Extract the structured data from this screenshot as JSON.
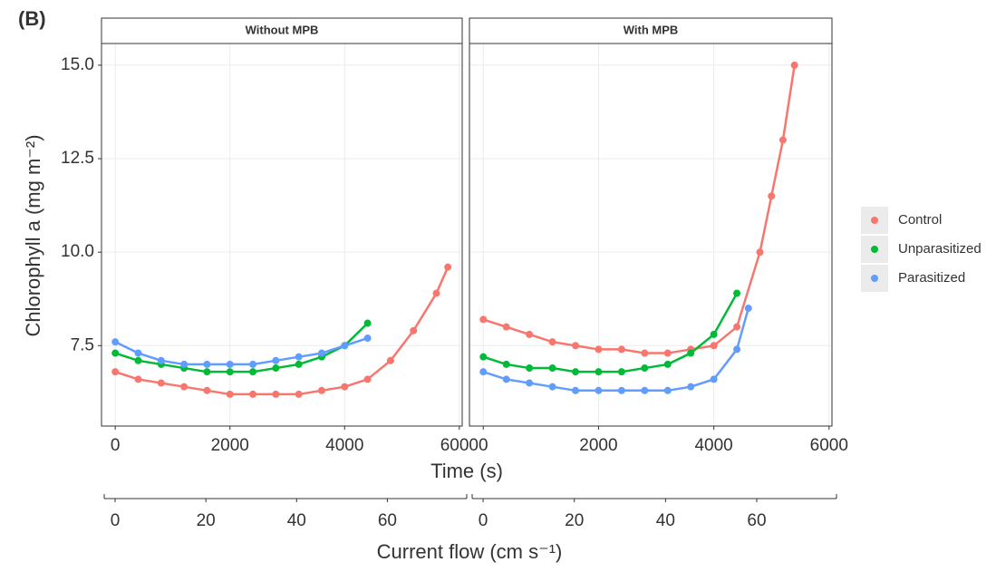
{
  "figure": {
    "label": "(B)",
    "y_label": "Chlorophyll a (mg m⁻²)",
    "x_label": "Time (s)",
    "x2_label": "Current flow (cm s⁻¹)"
  },
  "chart_data": [
    {
      "type": "scatter",
      "title": "Without MPB",
      "xlim": [
        -240,
        6050
      ],
      "xticks": [
        0,
        2000,
        4000,
        6000
      ],
      "x2lim": [
        -3,
        76.5
      ],
      "x2ticks": [
        0,
        20,
        40,
        60
      ],
      "ylim": [
        5.35,
        15.58
      ],
      "yticks": [
        {
          "value": 7.5,
          "label": "7.5"
        },
        {
          "value": 10,
          "label": "10.0"
        },
        {
          "value": 12.5,
          "label": "12.5"
        },
        {
          "value": 15,
          "label": "15.0"
        }
      ],
      "ytick_labels": true,
      "grid": true,
      "series": [
        {
          "name": "Control",
          "color": "#F8766D",
          "x": [
            0,
            400,
            800,
            1200,
            1600,
            2000,
            2400,
            2800,
            3200,
            3600,
            4000,
            4400,
            4800,
            5200,
            5600,
            5800
          ],
          "values": [
            6.8,
            6.6,
            6.5,
            6.4,
            6.3,
            6.2,
            6.2,
            6.2,
            6.2,
            6.3,
            6.4,
            6.6,
            7.1,
            7.9,
            8.9,
            9.6
          ]
        },
        {
          "name": "Unparasitized",
          "color": "#00BA38",
          "x": [
            0,
            400,
            800,
            1200,
            1600,
            2000,
            2400,
            2800,
            3200,
            3600,
            4000,
            4400
          ],
          "values": [
            7.3,
            7.1,
            7.0,
            6.9,
            6.8,
            6.8,
            6.8,
            6.9,
            7.0,
            7.2,
            7.5,
            8.1
          ]
        },
        {
          "name": "Parasitized",
          "color": "#619CFF",
          "x": [
            0,
            400,
            800,
            1200,
            1600,
            2000,
            2400,
            2800,
            3200,
            3600,
            4000,
            4400
          ],
          "values": [
            7.6,
            7.3,
            7.1,
            7.0,
            7.0,
            7.0,
            7.0,
            7.1,
            7.2,
            7.3,
            7.5,
            7.7
          ]
        }
      ]
    },
    {
      "type": "scatter",
      "title": "With MPB",
      "xlim": [
        -240,
        6050
      ],
      "xticks": [
        0,
        2000,
        4000,
        6000
      ],
      "x2lim": [
        -3,
        76.5
      ],
      "x2ticks": [
        0,
        20,
        40,
        60
      ],
      "ylim": [
        5.35,
        15.58
      ],
      "yticks": [
        7.5,
        10,
        12.5,
        15
      ],
      "ytick_labels": false,
      "grid": true,
      "series": [
        {
          "name": "Control",
          "color": "#F8766D",
          "x": [
            0,
            400,
            800,
            1200,
            1600,
            2000,
            2400,
            2800,
            3200,
            3600,
            4000,
            4400,
            4800,
            5000,
            5200,
            5400
          ],
          "values": [
            8.2,
            8.0,
            7.8,
            7.6,
            7.5,
            7.4,
            7.4,
            7.3,
            7.3,
            7.4,
            7.5,
            8.0,
            10.0,
            11.5,
            13.0,
            15.0
          ]
        },
        {
          "name": "Unparasitized",
          "color": "#00BA38",
          "x": [
            0,
            400,
            800,
            1200,
            1600,
            2000,
            2400,
            2800,
            3200,
            3600,
            4000,
            4400
          ],
          "values": [
            7.2,
            7.0,
            6.9,
            6.9,
            6.8,
            6.8,
            6.8,
            6.9,
            7.0,
            7.3,
            7.8,
            8.9
          ]
        },
        {
          "name": "Parasitized",
          "color": "#619CFF",
          "x": [
            0,
            400,
            800,
            1200,
            1600,
            2000,
            2400,
            2800,
            3200,
            3600,
            4000,
            4400,
            4600
          ],
          "values": [
            6.8,
            6.6,
            6.5,
            6.4,
            6.3,
            6.3,
            6.3,
            6.3,
            6.3,
            6.4,
            6.6,
            7.4,
            8.5
          ]
        }
      ]
    }
  ]
}
